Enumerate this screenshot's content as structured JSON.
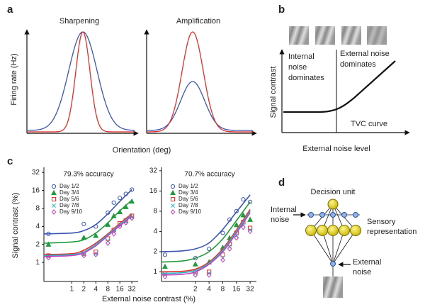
{
  "panel_labels": [
    "a",
    "b",
    "c",
    "d"
  ],
  "panel_a": {
    "left_title": "Sharpening",
    "right_title": "Amplification",
    "y_label": "Firing rate (Hz)",
    "x_label": "Orientation (deg)"
  },
  "panel_b": {
    "internal_noise": [
      "Internal",
      "noise",
      "dominates"
    ],
    "external_noise": [
      "External noise",
      "dominates"
    ],
    "y_label": "Signal contrast",
    "x_label": "External noise level",
    "curve_label": "TVC curve"
  },
  "panel_c": {
    "y_label": "Signal contrast (%)",
    "x_label": "External noise contrast (%)"
  },
  "panel_d": {
    "decision": "Decision unit",
    "internal_noise": [
      "Internal",
      "noise"
    ],
    "sensory": [
      "Sensory",
      "representation"
    ],
    "external_noise": [
      "External",
      "noise"
    ]
  },
  "chart_data": [
    {
      "type": "scatter",
      "title": "79.3% accuracy",
      "xlog": true,
      "ylog": true,
      "x": [
        0.26,
        2,
        4,
        8,
        11.3,
        16,
        22.6,
        32
      ],
      "fit_x": [
        0.2,
        1,
        2,
        4,
        8,
        16,
        32
      ],
      "xlim": [
        0.2,
        46
      ],
      "ylim": [
        0.48,
        39
      ],
      "xticks": [
        1,
        2,
        4,
        8,
        16,
        32
      ],
      "yticks": [
        1,
        2,
        4,
        8,
        16,
        32
      ],
      "series": [
        {
          "name": "Day 1/2",
          "color": "#3a55b4",
          "marker": "circle",
          "values": [
            3.0,
            4.4,
            4.0,
            6.8,
            10,
            12,
            14,
            16.5
          ],
          "fit": [
            3.0,
            3.1,
            3.4,
            4.3,
            6.5,
            10.5,
            16.5
          ]
        },
        {
          "name": "Day 3/4",
          "color": "#1e9a3a",
          "marker": "triangle",
          "values": [
            2.0,
            2.6,
            2.8,
            4.3,
            6,
            7,
            8.5,
            10.5
          ],
          "fit": [
            2.1,
            2.2,
            2.4,
            3.1,
            4.6,
            7.3,
            11
          ]
        },
        {
          "name": "Day 5/6",
          "color": "#e0302a",
          "marker": "square",
          "values": [
            1.3,
            1.4,
            1.5,
            2.5,
            3.5,
            4.5,
            5,
            6
          ],
          "fit": [
            1.35,
            1.4,
            1.6,
            2.1,
            3.0,
            4.5,
            6.5
          ]
        },
        {
          "name": "Day 7/8",
          "color": "#2ab8c8",
          "marker": "cross",
          "values": [
            1.25,
            1.35,
            1.4,
            2.3,
            3.2,
            4.2,
            4.8,
            5.7
          ],
          "fit": [
            1.3,
            1.35,
            1.5,
            2.0,
            2.9,
            4.3,
            6.2
          ]
        },
        {
          "name": "Day 9/10",
          "color": "#c040c0",
          "marker": "diamond",
          "values": [
            1.2,
            1.3,
            1.35,
            2.1,
            3.0,
            4.0,
            4.6,
            5.5
          ],
          "fit": [
            1.25,
            1.3,
            1.45,
            1.9,
            2.8,
            4.1,
            6.0
          ]
        }
      ]
    },
    {
      "type": "scatter",
      "title": "70.7% accuracy",
      "xlog": true,
      "ylog": true,
      "x": [
        0.43,
        2,
        4,
        8,
        11.3,
        16,
        22.6,
        32
      ],
      "fit_x": [
        0.36,
        1,
        2,
        4,
        8,
        16,
        32
      ],
      "xlim": [
        0.36,
        44
      ],
      "ylim": [
        0.72,
        36
      ],
      "xticks": [
        2,
        4,
        8,
        16,
        32
      ],
      "yticks": [
        1,
        2,
        4,
        8,
        16,
        32
      ],
      "series": [
        {
          "name": "Day 1/2",
          "color": "#3a55b4",
          "marker": "circle",
          "values": [
            1.8,
            1.6,
            2.2,
            3.8,
            6,
            8,
            12,
            11
          ],
          "fit": [
            2.0,
            2.05,
            2.2,
            2.7,
            4.3,
            7.8,
            14
          ]
        },
        {
          "name": "Day 3/4",
          "color": "#1e9a3a",
          "marker": "triangle",
          "values": [
            1.2,
            1.3,
            1.4,
            2.3,
            3.2,
            5,
            7,
            6
          ],
          "fit": [
            1.4,
            1.45,
            1.6,
            2.0,
            3.1,
            5.8,
            11
          ]
        },
        {
          "name": "Day 5/6",
          "color": "#e0302a",
          "marker": "square",
          "values": [
            0.95,
            1.0,
            1.0,
            1.8,
            2.6,
            3.8,
            5.5,
            4.5
          ],
          "fit": [
            1.0,
            1.02,
            1.1,
            1.4,
            2.2,
            4.2,
            8.5
          ]
        },
        {
          "name": "Day 7/8",
          "color": "#2ab8c8",
          "marker": "cross",
          "values": [
            0.9,
            0.95,
            0.95,
            1.6,
            2.4,
            3.5,
            5,
            4.2
          ],
          "fit": [
            0.95,
            0.97,
            1.05,
            1.35,
            2.1,
            4.0,
            8.0
          ]
        },
        {
          "name": "Day 9/10",
          "color": "#c040c0",
          "marker": "diamond",
          "values": [
            0.85,
            0.9,
            0.9,
            1.5,
            2.2,
            3.2,
            4.6,
            4.0
          ],
          "fit": [
            0.9,
            0.92,
            1.0,
            1.3,
            2.0,
            3.8,
            7.6
          ]
        }
      ]
    }
  ]
}
